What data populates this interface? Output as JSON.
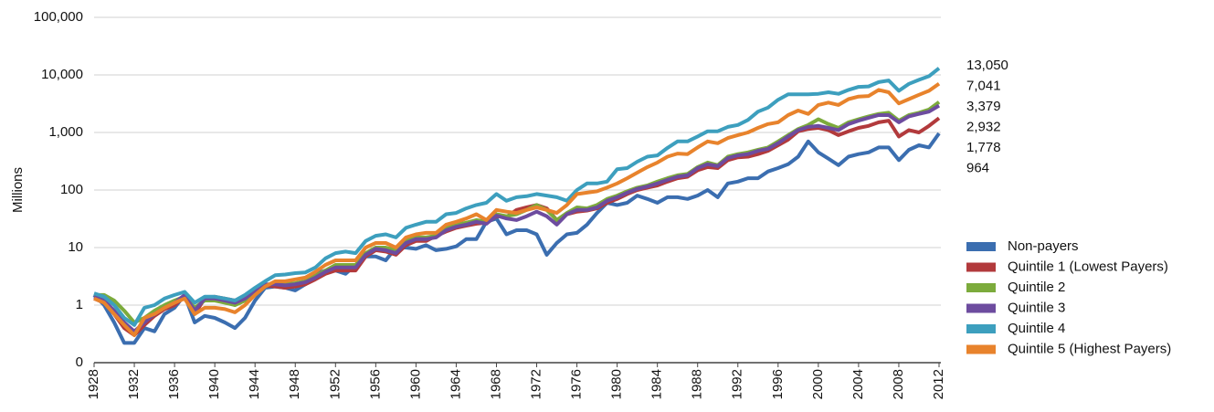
{
  "chart_data": {
    "type": "line",
    "y_label": "Millions",
    "yscale": "log",
    "grid": true,
    "legend": "right",
    "ylim": [
      0.1,
      100000
    ],
    "yticks": [
      {
        "value": 0.1,
        "label": "0"
      },
      1,
      10,
      100,
      {
        "value": 1000,
        "label": "1,000"
      },
      {
        "value": 10000,
        "label": "10,000"
      },
      {
        "value": 100000,
        "label": "100,000"
      }
    ],
    "xlim": [
      1928,
      2012
    ],
    "xticks": [
      1928,
      1932,
      1936,
      1940,
      1944,
      1948,
      1952,
      1956,
      1960,
      1964,
      1968,
      1972,
      1976,
      1980,
      1984,
      1988,
      1992,
      1996,
      2000,
      2004,
      2008,
      2012
    ],
    "x": [
      1928,
      1929,
      1930,
      1931,
      1932,
      1933,
      1934,
      1935,
      1936,
      1937,
      1938,
      1939,
      1940,
      1941,
      1942,
      1943,
      1944,
      1945,
      1946,
      1947,
      1948,
      1949,
      1950,
      1951,
      1952,
      1953,
      1954,
      1955,
      1956,
      1957,
      1958,
      1959,
      1960,
      1961,
      1962,
      1963,
      1964,
      1965,
      1966,
      1967,
      1968,
      1969,
      1970,
      1971,
      1972,
      1973,
      1974,
      1975,
      1976,
      1977,
      1978,
      1979,
      1980,
      1981,
      1982,
      1983,
      1984,
      1985,
      1986,
      1987,
      1988,
      1989,
      1990,
      1991,
      1992,
      1993,
      1994,
      1995,
      1996,
      1997,
      1998,
      1999,
      2000,
      2001,
      2002,
      2003,
      2004,
      2005,
      2006,
      2007,
      2008,
      2009,
      2010,
      2011,
      2012
    ],
    "series": [
      {
        "name": "Non-payers",
        "color": "#3b6eb0",
        "values": [
          1.5,
          1.0,
          0.5,
          0.22,
          0.22,
          0.4,
          0.35,
          0.7,
          0.9,
          1.5,
          0.5,
          0.65,
          0.6,
          0.5,
          0.4,
          0.6,
          1.2,
          2.0,
          2.1,
          2.0,
          1.8,
          2.3,
          3.5,
          4,
          4,
          3.5,
          5,
          7,
          7,
          6,
          10,
          10,
          9.5,
          11,
          9,
          9.5,
          10.5,
          14,
          14,
          28,
          32,
          17,
          20,
          20,
          17,
          7.5,
          12,
          17,
          18,
          25,
          40,
          60,
          55,
          60,
          80,
          70,
          60,
          75,
          75,
          70,
          80,
          100,
          75,
          130,
          140,
          160,
          160,
          210,
          240,
          280,
          380,
          700,
          450,
          350,
          270,
          380,
          420,
          450,
          550,
          550,
          330,
          500,
          600,
          550,
          964
        ],
        "value_labels": [
          null,
          null,
          null,
          null,
          null,
          null,
          null,
          null,
          null,
          null,
          null,
          null,
          null,
          null,
          null,
          null,
          null,
          null,
          null,
          null,
          null,
          null,
          null,
          null,
          null,
          null,
          null,
          null,
          null,
          null,
          null,
          null,
          null,
          null,
          null,
          null,
          null,
          null,
          null,
          null,
          null,
          null,
          null,
          null,
          null,
          null,
          null,
          null,
          null,
          null,
          null,
          null,
          null,
          null,
          null,
          null,
          null,
          null,
          null,
          null,
          null,
          null,
          null,
          null,
          null,
          null,
          null,
          null,
          null,
          null,
          null,
          null,
          null,
          null,
          null,
          null,
          null,
          null,
          null,
          null,
          null,
          null,
          null,
          null,
          "964"
        ]
      },
      {
        "name": "Quintile 1 (Lowest Payers)",
        "color": "#b23a3c",
        "values": [
          1.3,
          1.1,
          0.7,
          0.4,
          0.3,
          0.45,
          0.65,
          0.85,
          1.0,
          1.4,
          0.7,
          1.3,
          1.4,
          1.3,
          1.2,
          1.3,
          1.7,
          2.2,
          2.1,
          2.0,
          2.1,
          2.3,
          2.8,
          3.5,
          4,
          4,
          4,
          7,
          9,
          8.5,
          7.5,
          11,
          13,
          13,
          16,
          19,
          22,
          24,
          26,
          27,
          35,
          34,
          45,
          50,
          55,
          48,
          30,
          38,
          42,
          44,
          48,
          60,
          70,
          85,
          100,
          110,
          120,
          140,
          160,
          170,
          220,
          250,
          240,
          330,
          370,
          380,
          420,
          480,
          600,
          750,
          1050,
          1150,
          1200,
          1100,
          900,
          1050,
          1200,
          1300,
          1500,
          1600,
          850,
          1100,
          1000,
          1300,
          1778
        ],
        "value_labels": [
          null,
          null,
          null,
          null,
          null,
          null,
          null,
          null,
          null,
          null,
          null,
          null,
          null,
          null,
          null,
          null,
          null,
          null,
          null,
          null,
          null,
          null,
          null,
          null,
          null,
          null,
          null,
          null,
          null,
          null,
          null,
          null,
          null,
          null,
          null,
          null,
          null,
          null,
          null,
          null,
          null,
          null,
          null,
          null,
          null,
          null,
          null,
          null,
          null,
          null,
          null,
          null,
          null,
          null,
          null,
          null,
          null,
          null,
          null,
          null,
          null,
          null,
          null,
          null,
          null,
          null,
          null,
          null,
          null,
          null,
          null,
          null,
          null,
          null,
          null,
          null,
          null,
          null,
          null,
          null,
          null,
          null,
          null,
          null,
          "1,778"
        ]
      },
      {
        "name": "Quintile 2",
        "color": "#7cab3c",
        "values": [
          1.5,
          1.5,
          1.2,
          0.8,
          0.5,
          0.6,
          0.8,
          1.0,
          1.2,
          1.4,
          0.9,
          1.2,
          1.2,
          1.1,
          1.0,
          1.2,
          1.7,
          2.2,
          2.4,
          2.3,
          2.4,
          2.6,
          3.2,
          4,
          5,
          5,
          5,
          8,
          10,
          10,
          9,
          13,
          15,
          15,
          16,
          22,
          25,
          27,
          30,
          28,
          38,
          35,
          38,
          45,
          55,
          45,
          30,
          40,
          50,
          48,
          55,
          70,
          80,
          95,
          110,
          120,
          140,
          160,
          180,
          190,
          250,
          300,
          270,
          380,
          420,
          450,
          500,
          550,
          700,
          900,
          1150,
          1350,
          1700,
          1400,
          1200,
          1500,
          1700,
          1900,
          2100,
          2200,
          1600,
          2000,
          2200,
          2500,
          3379
        ],
        "value_labels": [
          null,
          null,
          null,
          null,
          null,
          null,
          null,
          null,
          null,
          null,
          null,
          null,
          null,
          null,
          null,
          null,
          null,
          null,
          null,
          null,
          null,
          null,
          null,
          null,
          null,
          null,
          null,
          null,
          null,
          null,
          null,
          null,
          null,
          null,
          null,
          null,
          null,
          null,
          null,
          null,
          null,
          null,
          null,
          null,
          null,
          null,
          null,
          null,
          null,
          null,
          null,
          null,
          null,
          null,
          null,
          null,
          null,
          null,
          null,
          null,
          null,
          null,
          null,
          null,
          null,
          null,
          null,
          null,
          null,
          null,
          null,
          null,
          null,
          null,
          null,
          null,
          null,
          null,
          null,
          null,
          null,
          null,
          null,
          null,
          "3,379"
        ]
      },
      {
        "name": "Quintile 3",
        "color": "#6d4c9f",
        "values": [
          1.4,
          1.2,
          0.8,
          0.5,
          0.35,
          0.5,
          0.7,
          0.9,
          1.1,
          1.5,
          0.8,
          1.3,
          1.3,
          1.2,
          1.1,
          1.3,
          1.8,
          2.3,
          2.3,
          2.2,
          2.3,
          2.5,
          3,
          3.8,
          4.5,
          4.5,
          4.5,
          7.5,
          9.5,
          9,
          8,
          12,
          14,
          14,
          15,
          20,
          23,
          25,
          28,
          26,
          36,
          32,
          30,
          35,
          42,
          35,
          25,
          38,
          45,
          45,
          50,
          65,
          75,
          90,
          105,
          115,
          130,
          150,
          170,
          180,
          240,
          280,
          260,
          360,
          400,
          420,
          480,
          520,
          650,
          850,
          1100,
          1250,
          1300,
          1200,
          1100,
          1400,
          1600,
          1800,
          2000,
          2000,
          1500,
          1900,
          2100,
          2300,
          2932
        ],
        "value_labels": [
          null,
          null,
          null,
          null,
          null,
          null,
          null,
          null,
          null,
          null,
          null,
          null,
          null,
          null,
          null,
          null,
          null,
          null,
          null,
          null,
          null,
          null,
          null,
          null,
          null,
          null,
          null,
          null,
          null,
          null,
          null,
          null,
          null,
          null,
          null,
          null,
          null,
          null,
          null,
          null,
          null,
          null,
          null,
          null,
          null,
          null,
          null,
          null,
          null,
          null,
          null,
          null,
          null,
          null,
          null,
          null,
          null,
          null,
          null,
          null,
          null,
          null,
          null,
          null,
          null,
          null,
          null,
          null,
          null,
          null,
          null,
          null,
          null,
          null,
          null,
          null,
          null,
          null,
          null,
          null,
          null,
          null,
          null,
          null,
          "2,932"
        ]
      },
      {
        "name": "Quintile 4",
        "color": "#3d9fbe",
        "values": [
          1.6,
          1.4,
          1.0,
          0.6,
          0.45,
          0.9,
          1.0,
          1.3,
          1.5,
          1.7,
          1.1,
          1.4,
          1.4,
          1.3,
          1.2,
          1.5,
          2.0,
          2.6,
          3.3,
          3.4,
          3.6,
          3.7,
          4.5,
          6.5,
          8,
          8.5,
          8,
          13,
          16,
          17,
          15,
          22,
          25,
          28,
          28,
          38,
          40,
          48,
          55,
          60,
          85,
          65,
          75,
          78,
          85,
          80,
          75,
          65,
          100,
          130,
          130,
          140,
          230,
          240,
          310,
          380,
          400,
          540,
          700,
          700,
          850,
          1050,
          1050,
          1250,
          1350,
          1650,
          2300,
          2700,
          3700,
          4600,
          4600,
          4600,
          4700,
          5000,
          4700,
          5500,
          6200,
          6300,
          7500,
          8000,
          5300,
          7000,
          8200,
          9500,
          13050
        ],
        "value_labels": [
          null,
          null,
          null,
          null,
          null,
          null,
          null,
          null,
          null,
          null,
          null,
          null,
          null,
          null,
          null,
          null,
          null,
          null,
          null,
          null,
          null,
          null,
          null,
          null,
          null,
          null,
          null,
          null,
          null,
          null,
          null,
          null,
          null,
          null,
          null,
          null,
          null,
          null,
          null,
          null,
          null,
          null,
          null,
          null,
          null,
          null,
          null,
          null,
          null,
          null,
          null,
          null,
          null,
          null,
          null,
          null,
          null,
          null,
          null,
          null,
          null,
          null,
          null,
          null,
          null,
          null,
          null,
          null,
          null,
          null,
          null,
          null,
          null,
          null,
          null,
          null,
          null,
          null,
          null,
          null,
          null,
          null,
          null,
          null,
          "13,050"
        ]
      },
      {
        "name": "Quintile 5 (Highest Payers)",
        "color": "#e8832c",
        "values": [
          1.3,
          1.1,
          0.7,
          0.45,
          0.3,
          0.6,
          0.7,
          0.9,
          1.1,
          1.3,
          0.7,
          0.9,
          0.9,
          0.85,
          0.75,
          1.0,
          1.5,
          2.1,
          2.6,
          2.6,
          2.8,
          3.0,
          3.8,
          5,
          6,
          6,
          6,
          10,
          12,
          12,
          10,
          15,
          17,
          18,
          18,
          25,
          28,
          32,
          38,
          30,
          45,
          42,
          40,
          45,
          50,
          45,
          40,
          55,
          85,
          90,
          95,
          110,
          130,
          160,
          200,
          250,
          300,
          380,
          430,
          420,
          550,
          700,
          650,
          800,
          900,
          1000,
          1200,
          1400,
          1500,
          2000,
          2400,
          2100,
          3000,
          3300,
          3000,
          3800,
          4200,
          4300,
          5500,
          5000,
          3200,
          3800,
          4500,
          5300,
          7041
        ],
        "value_labels": [
          null,
          null,
          null,
          null,
          null,
          null,
          null,
          null,
          null,
          null,
          null,
          null,
          null,
          null,
          null,
          null,
          null,
          null,
          null,
          null,
          null,
          null,
          null,
          null,
          null,
          null,
          null,
          null,
          null,
          null,
          null,
          null,
          null,
          null,
          null,
          null,
          null,
          null,
          null,
          null,
          null,
          null,
          null,
          null,
          null,
          null,
          null,
          null,
          null,
          null,
          null,
          null,
          null,
          null,
          null,
          null,
          null,
          null,
          null,
          null,
          null,
          null,
          null,
          null,
          null,
          null,
          null,
          null,
          null,
          null,
          null,
          null,
          null,
          null,
          null,
          null,
          null,
          null,
          null,
          null,
          null,
          null,
          null,
          null,
          "7,041"
        ]
      }
    ]
  }
}
